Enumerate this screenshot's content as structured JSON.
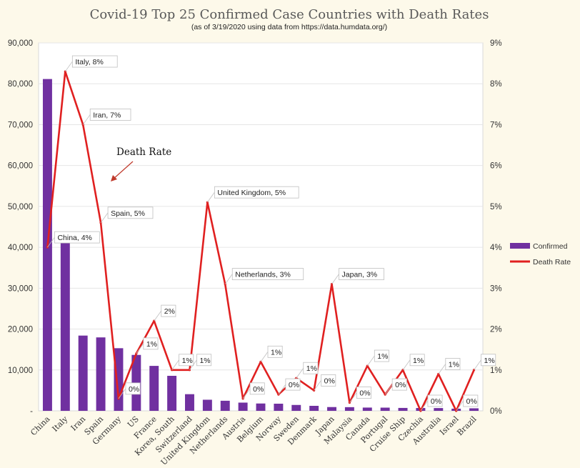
{
  "chart_data": {
    "type": "bar",
    "title": "Covid-19 Top 25 Confirmed Case Countries with Death Rates",
    "subtitle": "(as of 3/19/2020 using data from https://data.humdata.org/)",
    "categories": [
      "China",
      "Italy",
      "Iran",
      "Spain",
      "Germany",
      "US",
      "France",
      "Korea, South",
      "Switzerland",
      "United Kingdom",
      "Netherlands",
      "Austria",
      "Belgium",
      "Norway",
      "Sweden",
      "Denmark",
      "Japan",
      "Malaysia",
      "Canada",
      "Portugal",
      "Cruise Ship",
      "Czechia",
      "Australia",
      "Israel",
      "Brazil"
    ],
    "series": [
      {
        "name": "Confirmed",
        "type": "bar",
        "axis": "left",
        "color": "#7030a0",
        "values": [
          81156,
          41035,
          18407,
          17963,
          15320,
          13677,
          10995,
          8565,
          4075,
          2716,
          2467,
          2013,
          1795,
          1746,
          1439,
          1225,
          924,
          900,
          800,
          785,
          712,
          694,
          681,
          529,
          621
        ]
      },
      {
        "name": "Death Rate",
        "type": "line",
        "axis": "right",
        "color": "#e02020",
        "values": [
          4.0,
          8.3,
          7.0,
          4.6,
          0.3,
          1.4,
          2.2,
          1.0,
          1.0,
          5.1,
          3.1,
          0.3,
          1.2,
          0.4,
          0.8,
          0.5,
          3.1,
          0.2,
          1.1,
          0.4,
          1.0,
          0.0,
          0.9,
          0.0,
          1.0
        ],
        "labels": [
          "China, 4%",
          "Italy, 8%",
          "Iran, 7%",
          "Spain, 5%",
          "0%",
          "1%",
          "2%",
          "1%",
          "1%",
          "United Kingdom, 5%",
          "Netherlands, 3%",
          "0%",
          "1%",
          "0%",
          "1%",
          "0%",
          "Japan, 3%",
          "0%",
          "1%",
          "0%",
          "1%",
          "0%",
          "1%",
          "0%",
          "1%"
        ]
      }
    ],
    "y_left": {
      "min": 0,
      "max": 90000,
      "ticks": [
        "-",
        "10,000",
        "20,000",
        "30,000",
        "40,000",
        "50,000",
        "60,000",
        "70,000",
        "80,000",
        "90,000"
      ]
    },
    "y_right": {
      "min": 0,
      "max": 9,
      "ticks": [
        "0%",
        "1%",
        "2%",
        "3%",
        "4%",
        "5%",
        "6%",
        "7%",
        "8%",
        "9%"
      ]
    },
    "grid": true,
    "legend_position": "right",
    "annotation": "Death Rate"
  }
}
